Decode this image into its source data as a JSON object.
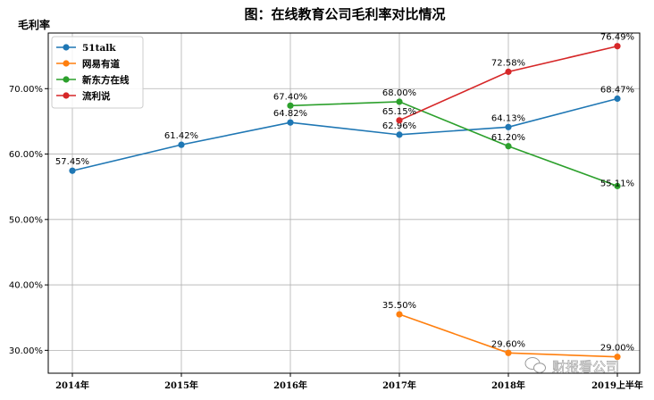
{
  "chart_data": {
    "type": "line",
    "title": "图：在线教育公司毛利率对比情况",
    "ylabel": "毛利率",
    "xlabel": "",
    "categories": [
      "2014年",
      "2015年",
      "2016年",
      "2017年",
      "2018年",
      "2019上半年"
    ],
    "ylim": [
      26.5,
      78.5
    ],
    "yticks": [
      30,
      40,
      50,
      60,
      70
    ],
    "ytick_labels": [
      "30.00%",
      "40.00%",
      "50.00%",
      "60.00%",
      "70.00%"
    ],
    "grid": true,
    "legend_position": "top-left",
    "series": [
      {
        "name": "51talk",
        "color": "#1f77b4",
        "values": [
          57.45,
          61.42,
          64.82,
          62.96,
          64.13,
          68.47
        ],
        "labels": [
          "57.45%",
          "61.42%",
          "64.82%",
          "62.96%",
          "64.13%",
          "68.47%"
        ]
      },
      {
        "name": "网易有道",
        "color": "#ff7f0e",
        "values": [
          null,
          null,
          null,
          35.5,
          29.6,
          29.0
        ],
        "labels": [
          null,
          null,
          null,
          "35.50%",
          "29.60%",
          "29.00%"
        ]
      },
      {
        "name": "新东方在线",
        "color": "#2ca02c",
        "values": [
          null,
          null,
          67.4,
          68.0,
          61.2,
          55.11
        ],
        "labels": [
          null,
          null,
          "67.40%",
          "68.00%",
          "61.20%",
          "55.11%"
        ]
      },
      {
        "name": "流利说",
        "color": "#d62728",
        "values": [
          null,
          null,
          null,
          65.15,
          72.58,
          76.49
        ],
        "labels": [
          null,
          null,
          null,
          "65.15%",
          "72.58%",
          "76.49%"
        ]
      }
    ]
  },
  "watermark": "财报看公司"
}
